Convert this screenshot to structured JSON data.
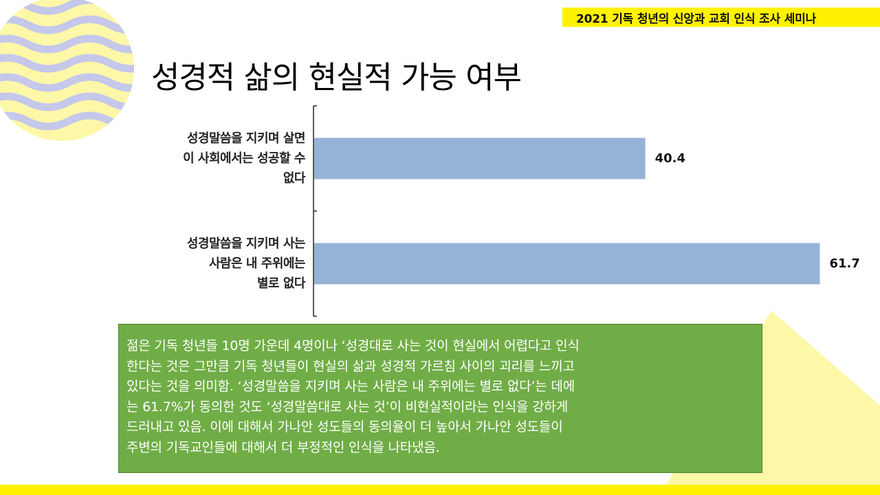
{
  "header": {
    "banner_text": "2021 기독 청년의 신앙과 교회 인식 조사 세미나"
  },
  "slide": {
    "title": "성경적 삶의 현실적 가능 여부"
  },
  "colors": {
    "accent_yellow": "#fff200",
    "bar": "#95b3d7",
    "summary_bg": "#70ad47",
    "wave": "#c5c8ea",
    "pale_yellow": "#fdf7a8"
  },
  "chart_data": {
    "type": "bar",
    "orientation": "horizontal",
    "categories": [
      [
        "성경말씀을 지키며 살면",
        "이 사회에서는 성공할 수",
        "없다"
      ],
      [
        "성경말씀을 지키며 사는",
        "사람은 내 주위에는",
        "별로 없다"
      ]
    ],
    "values": [
      40.4,
      61.7
    ],
    "value_labels": [
      "40.4",
      "61.7"
    ],
    "xlim": [
      0,
      100
    ],
    "grid": false,
    "legend": "none"
  },
  "summary": {
    "lines": [
      "젊은 기독 청년들 10명 가운데 4명이나 ‘성경대로 사는 것이 현실에서 어렵다고 인식",
      "한다는 것은 그만큼 기독 청년들이 현실의 삶과 성경적 가르침 사이의 괴리를 느끼고",
      "있다는 것을 의미함. ‘성경말씀을 지키며 사는 사람은 내 주위에는 별로 없다’는 데에",
      "는 61.7%가 동의한 것도 ‘성경말씀대로 사는 것’이 비현실적이라는 인식을 강하게",
      "드러내고 있음. 이에 대해서 가나안 성도들의 동의율이 더 높아서 가나안 성도들이",
      "주변의 기독교인들에 대해서 더 부정적인 인식을 나타냈음."
    ]
  }
}
